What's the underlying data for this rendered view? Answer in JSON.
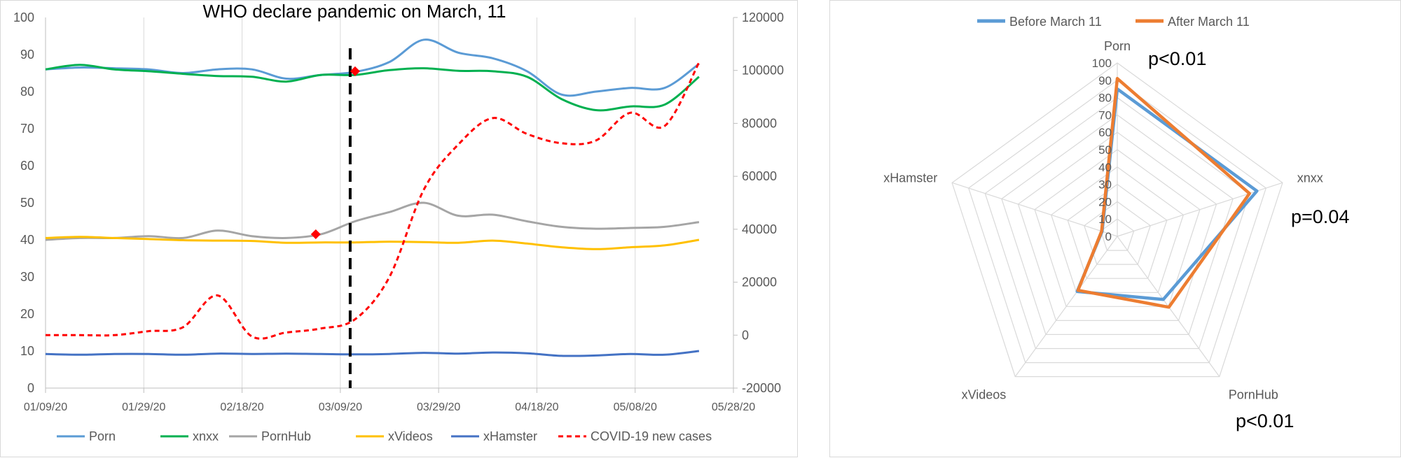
{
  "chart_data": [
    {
      "type": "line",
      "title": "WHO declare pandemic on March, 11",
      "x_ticks": [
        "01/09/20",
        "01/29/20",
        "02/18/20",
        "03/09/20",
        "03/29/20",
        "04/18/20",
        "05/08/20",
        "05/28/20"
      ],
      "x_range": [
        "2020-01-09",
        "2020-05-28"
      ],
      "ylim": [
        0,
        100
      ],
      "y_ticks": [
        "0",
        "10",
        "20",
        "30",
        "40",
        "50",
        "60",
        "70",
        "80",
        "90",
        "100"
      ],
      "y2lim": [
        -20000,
        120000
      ],
      "y2_ticks": [
        "-20000",
        "0",
        "20000",
        "40000",
        "60000",
        "80000",
        "100000",
        "120000"
      ],
      "grid": "vertical",
      "legend": "bottom",
      "event_line_date": "2020-03-11",
      "series": [
        {
          "name": "Porn",
          "color": "#5b9bd5",
          "axis": "left",
          "dash": false,
          "points": [
            [
              "2020-01-09",
              86
            ],
            [
              "2020-01-16",
              86.5
            ],
            [
              "2020-01-23",
              86.3
            ],
            [
              "2020-01-30",
              86
            ],
            [
              "2020-02-06",
              85
            ],
            [
              "2020-02-13",
              86
            ],
            [
              "2020-02-20",
              86
            ],
            [
              "2020-02-27",
              83.5
            ],
            [
              "2020-03-05",
              84.5
            ],
            [
              "2020-03-12",
              85.3
            ],
            [
              "2020-03-19",
              88
            ],
            [
              "2020-03-26",
              94
            ],
            [
              "2020-04-02",
              90.5
            ],
            [
              "2020-04-09",
              89
            ],
            [
              "2020-04-16",
              85.5
            ],
            [
              "2020-04-23",
              79.2
            ],
            [
              "2020-04-30",
              80
            ],
            [
              "2020-05-07",
              81
            ],
            [
              "2020-05-14",
              81
            ],
            [
              "2020-05-21",
              87.5
            ]
          ]
        },
        {
          "name": "xnxx",
          "color": "#00b050",
          "axis": "left",
          "dash": false,
          "points": [
            [
              "2020-01-09",
              86
            ],
            [
              "2020-01-16",
              87.2
            ],
            [
              "2020-01-23",
              86
            ],
            [
              "2020-01-30",
              85.5
            ],
            [
              "2020-02-06",
              84.8
            ],
            [
              "2020-02-13",
              84.2
            ],
            [
              "2020-02-20",
              84
            ],
            [
              "2020-02-27",
              82.7
            ],
            [
              "2020-03-05",
              84.5
            ],
            [
              "2020-03-12",
              84.5
            ],
            [
              "2020-03-19",
              85.8
            ],
            [
              "2020-03-26",
              86.3
            ],
            [
              "2020-04-02",
              85.6
            ],
            [
              "2020-04-09",
              85.5
            ],
            [
              "2020-04-16",
              84
            ],
            [
              "2020-04-23",
              78
            ],
            [
              "2020-04-30",
              75
            ],
            [
              "2020-05-07",
              76
            ],
            [
              "2020-05-14",
              76.5
            ],
            [
              "2020-05-21",
              84
            ]
          ]
        },
        {
          "name": "PornHub",
          "color": "#a5a5a5",
          "axis": "left",
          "dash": false,
          "points": [
            [
              "2020-01-09",
              40
            ],
            [
              "2020-01-16",
              40.5
            ],
            [
              "2020-01-23",
              40.5
            ],
            [
              "2020-01-30",
              41
            ],
            [
              "2020-02-06",
              40.5
            ],
            [
              "2020-02-13",
              42.5
            ],
            [
              "2020-02-20",
              41
            ],
            [
              "2020-02-27",
              40.5
            ],
            [
              "2020-03-05",
              41.5
            ],
            [
              "2020-03-12",
              45
            ],
            [
              "2020-03-19",
              47.5
            ],
            [
              "2020-03-26",
              50
            ],
            [
              "2020-04-02",
              46.5
            ],
            [
              "2020-04-09",
              46.8
            ],
            [
              "2020-04-16",
              45
            ],
            [
              "2020-04-23",
              43.5
            ],
            [
              "2020-04-30",
              43
            ],
            [
              "2020-05-07",
              43.2
            ],
            [
              "2020-05-14",
              43.5
            ],
            [
              "2020-05-21",
              44.8
            ]
          ]
        },
        {
          "name": "xVideos",
          "color": "#ffc000",
          "axis": "left",
          "dash": false,
          "points": [
            [
              "2020-01-09",
              40.5
            ],
            [
              "2020-01-16",
              40.8
            ],
            [
              "2020-01-23",
              40.5
            ],
            [
              "2020-01-30",
              40.2
            ],
            [
              "2020-02-06",
              39.9
            ],
            [
              "2020-02-13",
              39.8
            ],
            [
              "2020-02-20",
              39.7
            ],
            [
              "2020-02-27",
              39.2
            ],
            [
              "2020-03-05",
              39.3
            ],
            [
              "2020-03-12",
              39.3
            ],
            [
              "2020-03-19",
              39.5
            ],
            [
              "2020-03-26",
              39.4
            ],
            [
              "2020-04-02",
              39.2
            ],
            [
              "2020-04-09",
              39.8
            ],
            [
              "2020-04-16",
              39
            ],
            [
              "2020-04-23",
              38
            ],
            [
              "2020-04-30",
              37.5
            ],
            [
              "2020-05-07",
              38
            ],
            [
              "2020-05-14",
              38.5
            ],
            [
              "2020-05-21",
              40
            ]
          ]
        },
        {
          "name": "xHamster",
          "color": "#4472c4",
          "axis": "left",
          "dash": false,
          "points": [
            [
              "2020-01-09",
              9.2
            ],
            [
              "2020-01-16",
              9
            ],
            [
              "2020-01-23",
              9.2
            ],
            [
              "2020-01-30",
              9.2
            ],
            [
              "2020-02-06",
              9
            ],
            [
              "2020-02-13",
              9.3
            ],
            [
              "2020-02-20",
              9.2
            ],
            [
              "2020-02-27",
              9.3
            ],
            [
              "2020-03-05",
              9.2
            ],
            [
              "2020-03-12",
              9.1
            ],
            [
              "2020-03-19",
              9.2
            ],
            [
              "2020-03-26",
              9.5
            ],
            [
              "2020-04-02",
              9.3
            ],
            [
              "2020-04-09",
              9.6
            ],
            [
              "2020-04-16",
              9.4
            ],
            [
              "2020-04-23",
              8.7
            ],
            [
              "2020-04-30",
              8.8
            ],
            [
              "2020-05-07",
              9.2
            ],
            [
              "2020-05-14",
              9
            ],
            [
              "2020-05-21",
              10
            ]
          ]
        },
        {
          "name": "COVID-19 new cases",
          "color": "#ff0000",
          "axis": "right",
          "dash": true,
          "points": [
            [
              "2020-01-09",
              0
            ],
            [
              "2020-01-16",
              0
            ],
            [
              "2020-01-23",
              0
            ],
            [
              "2020-01-30",
              1500
            ],
            [
              "2020-02-06",
              3000
            ],
            [
              "2020-02-13",
              15000
            ],
            [
              "2020-02-20",
              -500
            ],
            [
              "2020-02-27",
              1000
            ],
            [
              "2020-03-05",
              2500
            ],
            [
              "2020-03-12",
              6000
            ],
            [
              "2020-03-19",
              22000
            ],
            [
              "2020-03-26",
              55000
            ],
            [
              "2020-04-02",
              72000
            ],
            [
              "2020-04-09",
              82000
            ],
            [
              "2020-04-16",
              76000
            ],
            [
              "2020-04-23",
              72500
            ],
            [
              "2020-04-30",
              73500
            ],
            [
              "2020-05-07",
              84000
            ],
            [
              "2020-05-14",
              79000
            ],
            [
              "2020-05-21",
              103000
            ]
          ]
        }
      ],
      "markers": [
        {
          "series": "Porn",
          "date": "2020-03-12",
          "value": 85.5,
          "color": "#ff0000"
        },
        {
          "series": "PornHub",
          "date": "2020-03-04",
          "value": 41.5,
          "color": "#ff0000"
        }
      ]
    },
    {
      "type": "radar",
      "axes": [
        "Porn",
        "xnxx",
        "PornHub",
        "xVideos",
        "xHamster"
      ],
      "rlim": [
        0,
        100
      ],
      "r_ticks": [
        "0",
        "10",
        "20",
        "30",
        "40",
        "50",
        "60",
        "70",
        "80",
        "90",
        "100"
      ],
      "legend": "top",
      "series": [
        {
          "name": "Before March 11",
          "color": "#5b9bd5",
          "values": [
            85,
            84.5,
            45,
            39.3,
            9.2
          ]
        },
        {
          "name": "After March 11",
          "color": "#ed7d31",
          "values": [
            91,
            80,
            50.5,
            38.5,
            9.5
          ]
        }
      ],
      "annotations": [
        "p<0.01",
        "p=0.04",
        "p<0.01"
      ]
    }
  ]
}
